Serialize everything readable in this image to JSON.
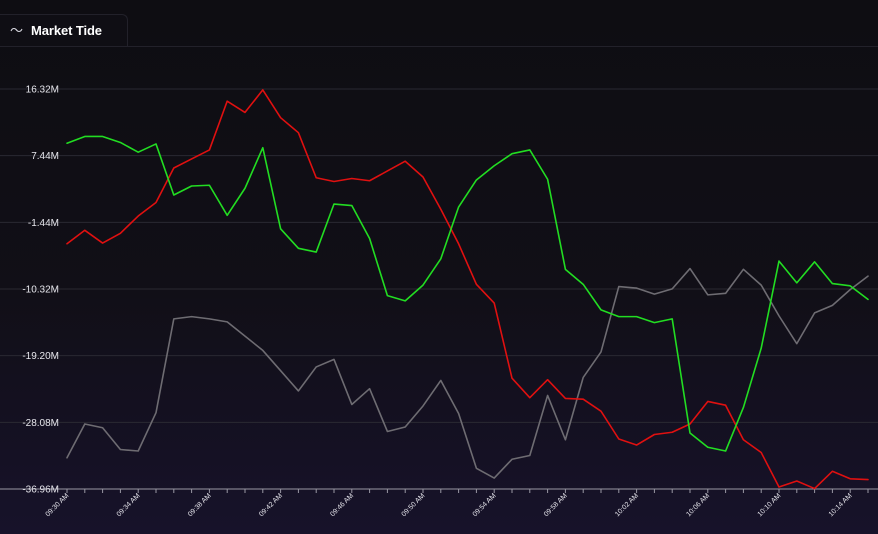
{
  "header": {
    "icon": "wave-icon",
    "icon_glyph": "〜",
    "title": "Market Tide"
  },
  "chart_data": {
    "type": "line",
    "title": "Market Tide",
    "xlabel": "",
    "ylabel": "",
    "yticks": [
      "16.32M",
      "7.44M",
      "-1.44M",
      "-10.32M",
      "-19.20M",
      "-28.08M",
      "-36.96M"
    ],
    "ytick_values": [
      16.32,
      7.44,
      -1.44,
      -10.32,
      -19.2,
      -28.08,
      -36.96
    ],
    "ylim": [
      -36.96,
      16.32
    ],
    "y_unit": "M",
    "grid": true,
    "x": [
      "09:30 AM",
      "09:31 AM",
      "09:32 AM",
      "09:33 AM",
      "09:34 AM",
      "09:35 AM",
      "09:36 AM",
      "09:37 AM",
      "09:38 AM",
      "09:39 AM",
      "09:40 AM",
      "09:41 AM",
      "09:42 AM",
      "09:43 AM",
      "09:44 AM",
      "09:45 AM",
      "09:46 AM",
      "09:47 AM",
      "09:48 AM",
      "09:49 AM",
      "09:50 AM",
      "09:51 AM",
      "09:52 AM",
      "09:53 AM",
      "09:54 AM",
      "09:55 AM",
      "09:56 AM",
      "09:57 AM",
      "09:58 AM",
      "09:59 AM",
      "10:00 AM",
      "10:01 AM",
      "10:02 AM",
      "10:03 AM",
      "10:04 AM",
      "10:05 AM",
      "10:06 AM",
      "10:07 AM",
      "10:08 AM",
      "10:09 AM",
      "10:10 AM",
      "10:11 AM",
      "10:12 AM",
      "10:13 AM",
      "10:14 AM",
      "10:15 AM"
    ],
    "xtick_labels": [
      "09:30 AM",
      "09:34 AM",
      "09:38 AM",
      "09:42 AM",
      "09:46 AM",
      "09:50 AM",
      "09:54 AM",
      "09:58 AM",
      "10:02 AM",
      "10:06 AM",
      "10:10 AM",
      "10:14 AM"
    ],
    "series": [
      {
        "color": "#22dd22",
        "values": [
          9.1,
          10.0,
          10.0,
          9.2,
          7.9,
          9.0,
          2.2,
          3.4,
          3.5,
          -0.5,
          3.1,
          8.5,
          -2.3,
          -4.9,
          -5.4,
          1.0,
          0.8,
          -3.6,
          -11.2,
          -11.9,
          -9.8,
          -6.3,
          0.6,
          4.2,
          6.1,
          7.7,
          8.2,
          4.3,
          -7.7,
          -9.7,
          -13.1,
          -14.0,
          -14.0,
          -14.8,
          -14.3,
          -29.5,
          -31.4,
          -31.9,
          -26.1,
          -18.2,
          -6.6,
          -9.5,
          -6.7,
          -9.6,
          -9.9,
          -11.7
        ]
      },
      {
        "color": "#e01010",
        "values": [
          -4.3,
          -2.5,
          -4.2,
          -2.9,
          -0.6,
          1.2,
          5.8,
          7.0,
          8.2,
          14.7,
          13.2,
          16.2,
          12.5,
          10.5,
          4.5,
          4.0,
          4.4,
          4.1,
          5.4,
          6.7,
          4.6,
          0.3,
          -4.3,
          -9.7,
          -12.2,
          -22.2,
          -24.8,
          -22.4,
          -24.9,
          -25.0,
          -26.6,
          -30.3,
          -31.1,
          -29.7,
          -29.4,
          -28.3,
          -25.3,
          -25.8,
          -30.4,
          -32.1,
          -36.7,
          -35.9,
          -36.9,
          -34.6,
          -35.6,
          -35.7
        ]
      },
      {
        "color": "#6e6c72",
        "values": [
          -32.8,
          -28.3,
          -28.8,
          -31.7,
          -31.9,
          -26.8,
          -14.3,
          -14.0,
          -14.3,
          -14.7,
          -16.6,
          -18.5,
          -21.2,
          -23.9,
          -20.7,
          -19.7,
          -25.7,
          -23.6,
          -29.3,
          -28.7,
          -25.9,
          -22.5,
          -26.9,
          -34.2,
          -35.5,
          -33.0,
          -32.5,
          -24.5,
          -30.4,
          -22.1,
          -18.7,
          -10.0,
          -10.2,
          -11.0,
          -10.3,
          -7.6,
          -11.1,
          -10.9,
          -7.7,
          -9.8,
          -13.9,
          -17.6,
          -13.5,
          -12.5,
          -10.4,
          -8.6
        ]
      }
    ]
  }
}
